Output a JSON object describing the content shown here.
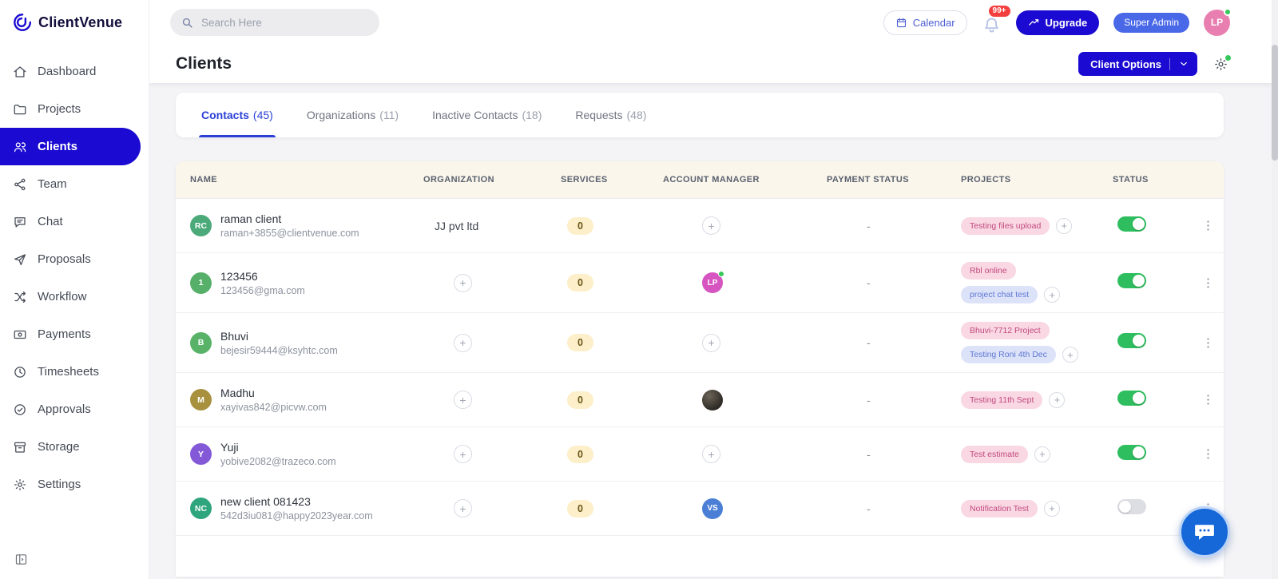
{
  "colors": {
    "accent": "#1B0AD1",
    "tab_accent": "#2B3FD6",
    "toggle_on": "#2FBE5F",
    "badge_red": "#F43F3F"
  },
  "brand": {
    "name": "ClientVenue"
  },
  "sidebar": {
    "items": [
      {
        "label": "Dashboard",
        "icon": "home",
        "active": false
      },
      {
        "label": "Projects",
        "icon": "folder",
        "active": false
      },
      {
        "label": "Clients",
        "icon": "users",
        "active": true
      },
      {
        "label": "Team",
        "icon": "team",
        "active": false
      },
      {
        "label": "Chat",
        "icon": "chat",
        "active": false
      },
      {
        "label": "Proposals",
        "icon": "send",
        "active": false
      },
      {
        "label": "Workflow",
        "icon": "workflow",
        "active": false
      },
      {
        "label": "Payments",
        "icon": "payments",
        "active": false
      },
      {
        "label": "Timesheets",
        "icon": "clock",
        "active": false
      },
      {
        "label": "Approvals",
        "icon": "approvals",
        "active": false
      },
      {
        "label": "Storage",
        "icon": "storage",
        "active": false
      },
      {
        "label": "Settings",
        "icon": "gear",
        "active": false
      }
    ]
  },
  "topbar": {
    "search_placeholder": "Search Here",
    "calendar_label": "Calendar",
    "notification_count": "99+",
    "upgrade_label": "Upgrade",
    "role_badge": "Super Admin",
    "user_initials": "LP"
  },
  "page": {
    "title": "Clients",
    "client_options_label": "Client Options"
  },
  "tabs": [
    {
      "label": "Contacts",
      "count": "(45)",
      "active": true
    },
    {
      "label": "Organizations",
      "count": "(11)",
      "active": false
    },
    {
      "label": "Inactive Contacts",
      "count": "(18)",
      "active": false
    },
    {
      "label": "Requests",
      "count": "(48)",
      "active": false
    }
  ],
  "table": {
    "headers": [
      "NAME",
      "ORGANIZATION",
      "SERVICES",
      "ACCOUNT MANAGER",
      "PAYMENT STATUS",
      "PROJECTS",
      "STATUS"
    ],
    "rows": [
      {
        "name": "raman client",
        "email": "raman+3855@clientvenue.com",
        "initials": "RC",
        "avatar_color": "#4BA97A",
        "organization": "JJ pvt ltd",
        "services": "0",
        "manager": {
          "type": "add"
        },
        "payment": "-",
        "projects": [
          {
            "label": "Testing files upload",
            "style": "pink"
          }
        ],
        "status_on": true
      },
      {
        "name": "123456",
        "email": "123456@gma.com",
        "initials": "1",
        "avatar_color": "#57B06A",
        "organization": null,
        "services": "0",
        "manager": {
          "type": "initials",
          "initials": "LP",
          "color": "#D655C0",
          "online": true
        },
        "payment": "-",
        "projects": [
          {
            "label": "Rbl online",
            "style": "pink"
          },
          {
            "label": "project chat test",
            "style": "blue"
          }
        ],
        "status_on": true
      },
      {
        "name": "Bhuvi",
        "email": "bejesir59444@ksyhtc.com",
        "initials": "B",
        "avatar_color": "#58B368",
        "organization": null,
        "services": "0",
        "manager": {
          "type": "add"
        },
        "payment": "-",
        "projects": [
          {
            "label": "Bhuvi-7712 Project",
            "style": "pink"
          },
          {
            "label": "Testing Roni 4th Dec",
            "style": "blue"
          }
        ],
        "status_on": true
      },
      {
        "name": "Madhu",
        "email": "xayivas842@picvw.com",
        "initials": "M",
        "avatar_color": "#A8913E",
        "organization": null,
        "services": "0",
        "manager": {
          "type": "photo"
        },
        "payment": "-",
        "projects": [
          {
            "label": "Testing 11th Sept",
            "style": "pink"
          }
        ],
        "status_on": true
      },
      {
        "name": "Yuji",
        "email": "yobive2082@trazeco.com",
        "initials": "Y",
        "avatar_color": "#8459D8",
        "organization": null,
        "services": "0",
        "manager": {
          "type": "add"
        },
        "payment": "-",
        "projects": [
          {
            "label": "Test estimate",
            "style": "pink"
          }
        ],
        "status_on": true
      },
      {
        "name": "new client 081423",
        "email": "542d3iu081@happy2023year.com",
        "initials": "NC",
        "avatar_color": "#2FA57D",
        "organization": null,
        "services": "0",
        "manager": {
          "type": "initials",
          "initials": "VS",
          "color": "#4B7FD6",
          "online": false
        },
        "payment": "-",
        "projects": [
          {
            "label": "Notification Test",
            "style": "pink"
          }
        ],
        "status_on": false
      }
    ]
  }
}
